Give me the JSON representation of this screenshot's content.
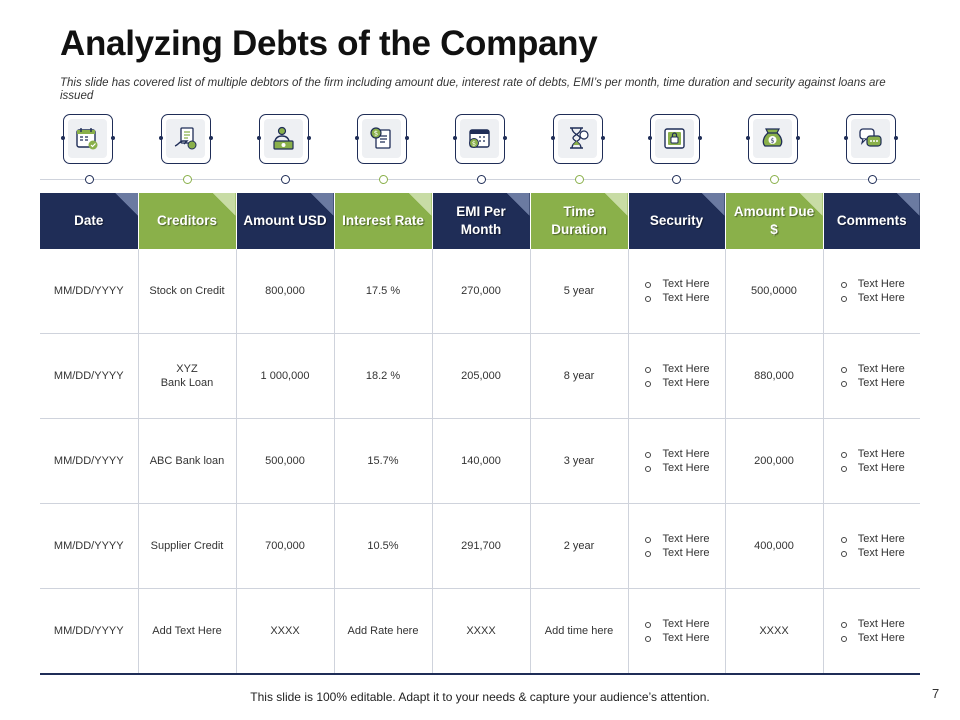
{
  "title": "Analyzing Debts of the Company",
  "subtitle": "This slide has covered list of multiple debtors of the firm including amount due, interest rate of debts, EMI’s  per month, time duration and security against loans are issued",
  "colors": {
    "navy": "#1f2d57",
    "green": "#8ab04a",
    "grid": "#cfd3dc"
  },
  "icons": [
    {
      "name": "calendar-check-icon",
      "dot": "navy"
    },
    {
      "name": "hand-money-document-icon",
      "dot": "green"
    },
    {
      "name": "person-cash-icon",
      "dot": "navy"
    },
    {
      "name": "coin-receipt-icon",
      "dot": "green"
    },
    {
      "name": "calendar-dollar-icon",
      "dot": "navy"
    },
    {
      "name": "hourglass-icon",
      "dot": "green"
    },
    {
      "name": "safe-lock-icon",
      "dot": "navy"
    },
    {
      "name": "money-bag-icon",
      "dot": "green"
    },
    {
      "name": "speech-bubbles-icon",
      "dot": "navy"
    }
  ],
  "table": {
    "headers": [
      {
        "label": "Date",
        "color": "navy"
      },
      {
        "label": "Creditors",
        "color": "green"
      },
      {
        "label": "Amount USD",
        "color": "navy"
      },
      {
        "label": "Interest Rate",
        "color": "green"
      },
      {
        "label": "EMI Per Month",
        "color": "navy"
      },
      {
        "label": "Time Duration",
        "color": "green"
      },
      {
        "label": "Security",
        "color": "navy"
      },
      {
        "label": "Amount Due $",
        "color": "green"
      },
      {
        "label": "Comments",
        "color": "navy"
      }
    ],
    "rows": [
      {
        "date": "MM/DD/YYYY",
        "creditor": "Stock on Credit",
        "amount": "800,000",
        "interest": "17.5 %",
        "emi": "270,000",
        "duration": "5 year",
        "security": [
          "Text Here",
          "Text Here"
        ],
        "due": "500,0000",
        "comments": [
          "Text Here",
          "Text Here"
        ]
      },
      {
        "date": "MM/DD/YYYY",
        "creditor": "XYZ\nBank Loan",
        "amount": "1 000,000",
        "interest": "18.2 %",
        "emi": "205,000",
        "duration": "8 year",
        "security": [
          "Text Here",
          "Text Here"
        ],
        "due": "880,000",
        "comments": [
          "Text Here",
          "Text Here"
        ]
      },
      {
        "date": "MM/DD/YYYY",
        "creditor": "ABC Bank loan",
        "amount": "500,000",
        "interest": "15.7%",
        "emi": "140,000",
        "duration": "3 year",
        "security": [
          "Text Here",
          "Text Here"
        ],
        "due": "200,000",
        "comments": [
          "Text Here",
          "Text Here"
        ]
      },
      {
        "date": "MM/DD/YYYY",
        "creditor": "Supplier Credit",
        "amount": "700,000",
        "interest": "10.5%",
        "emi": "291,700",
        "duration": "2 year",
        "security": [
          "Text Here",
          "Text Here"
        ],
        "due": "400,000",
        "comments": [
          "Text Here",
          "Text Here"
        ]
      },
      {
        "date": "MM/DD/YYYY",
        "creditor": "Add Text Here",
        "amount": "XXXX",
        "interest": "Add Rate here",
        "emi": "XXXX",
        "duration": "Add time here",
        "security": [
          "Text Here",
          "Text Here"
        ],
        "due": "XXXX",
        "comments": [
          "Text Here",
          "Text Here"
        ]
      }
    ]
  },
  "footer": "This slide is 100% editable. Adapt it to your needs & capture your audience’s attention.",
  "page_number": "7"
}
